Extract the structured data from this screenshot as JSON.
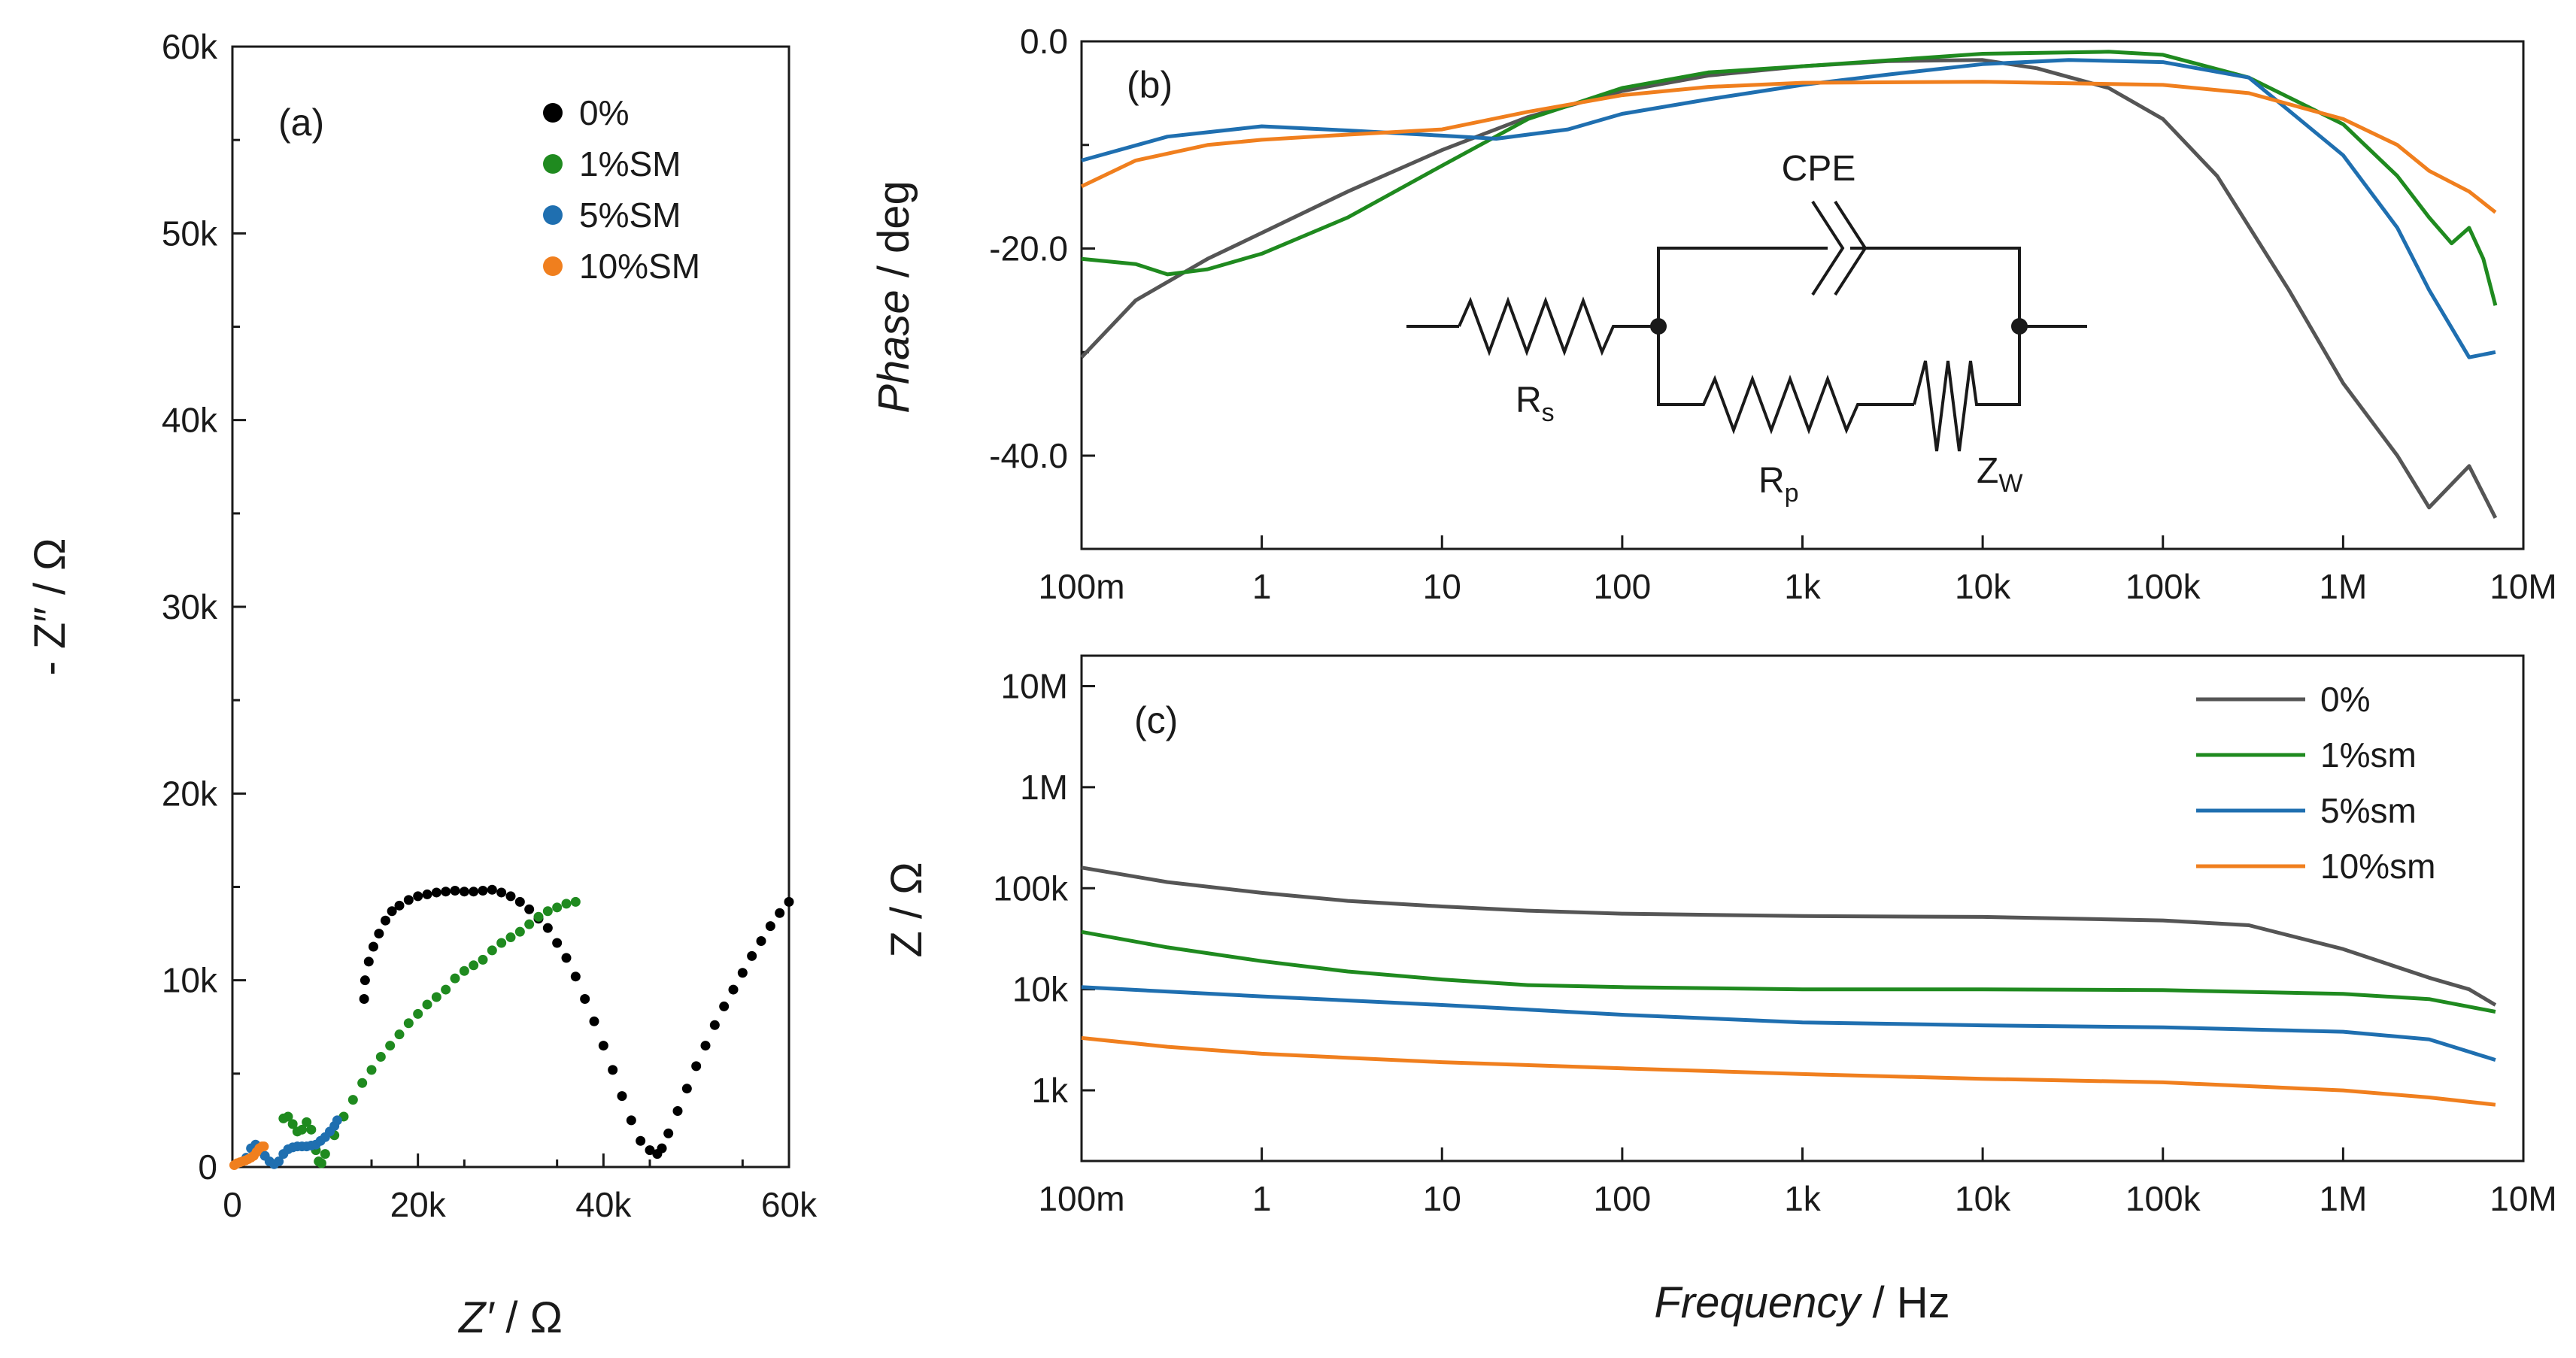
{
  "colors": {
    "s0": "#555555",
    "s0_points": "#000000",
    "s1": "#1f8a1f",
    "s5": "#1f6fb0",
    "s10": "#f07f1e"
  },
  "chart_data": [
    {
      "type": "scatter",
      "panel_label": "(a)",
      "xlabel_main": "Z′",
      "xlabel_unit": " / Ω",
      "ylabel": "- Z″ / Ω",
      "xlim": [
        0,
        60000
      ],
      "ylim": [
        0,
        60000
      ],
      "xticks": [
        "0",
        "20k",
        "40k",
        "60k"
      ],
      "yticks": [
        "0",
        "10k",
        "20k",
        "30k",
        "40k",
        "50k",
        "60k"
      ],
      "legend": [
        "0%",
        "1%SM",
        "5%SM",
        "10%SM"
      ],
      "series": [
        {
          "name": "0%",
          "x": [
            14200,
            14300,
            14700,
            15200,
            15800,
            16500,
            17200,
            18000,
            19000,
            20000,
            21000,
            22000,
            23000,
            24000,
            25000,
            26000,
            27000,
            28000,
            29000,
            30000,
            31000,
            32000,
            33000,
            34000,
            35000,
            36000,
            37000,
            38000,
            39000,
            40000,
            41000,
            42000,
            43000,
            44000,
            45000,
            45800,
            46300,
            47000,
            48000,
            49000,
            50000,
            51000,
            52000,
            53000,
            54000,
            55000,
            56000,
            57000,
            58000,
            59000,
            60000
          ],
          "y": [
            9000,
            10000,
            11000,
            11800,
            12500,
            13200,
            13700,
            14000,
            14300,
            14500,
            14600,
            14700,
            14750,
            14800,
            14750,
            14750,
            14800,
            14850,
            14700,
            14500,
            14200,
            13800,
            13300,
            12800,
            12000,
            11200,
            10200,
            9000,
            7800,
            6500,
            5200,
            3800,
            2500,
            1400,
            900,
            700,
            1000,
            1800,
            3000,
            4200,
            5400,
            6500,
            7600,
            8600,
            9500,
            10400,
            11300,
            12100,
            12900,
            13600,
            14200
          ]
        },
        {
          "name": "1%SM",
          "x": [
            5500,
            6000,
            6500,
            7000,
            7500,
            8000,
            8500,
            9000,
            9300,
            9600,
            10000,
            11000,
            12000,
            13000,
            14000,
            15000,
            16000,
            17000,
            18000,
            19000,
            20000,
            21000,
            22000,
            23000,
            24000,
            25000,
            26000,
            27000,
            28000,
            29000,
            30000,
            31000,
            32000,
            33000,
            34000,
            35000,
            36000,
            37000
          ],
          "y": [
            2600,
            2700,
            2300,
            1900,
            2000,
            2400,
            2000,
            900,
            300,
            200,
            700,
            1700,
            2700,
            3600,
            4500,
            5200,
            5900,
            6500,
            7100,
            7700,
            8200,
            8700,
            9100,
            9500,
            10100,
            10500,
            10800,
            11100,
            11600,
            12000,
            12300,
            12600,
            13000,
            13400,
            13700,
            13900,
            14100,
            14200
          ]
        },
        {
          "name": "5%SM",
          "x": [
            1500,
            2000,
            2500,
            3000,
            3500,
            4000,
            4500,
            5000,
            5500,
            6000,
            6500,
            7000,
            7500,
            8000,
            8500,
            9000,
            9500,
            10000,
            10500,
            11000,
            11300
          ],
          "y": [
            500,
            1000,
            1200,
            900,
            600,
            300,
            150,
            300,
            700,
            950,
            1050,
            1100,
            1100,
            1100,
            1150,
            1200,
            1400,
            1600,
            1900,
            2200,
            2500
          ]
        },
        {
          "name": "10%SM",
          "x": [
            200,
            500,
            800,
            1100,
            1400,
            1700,
            2000,
            2300,
            2600,
            2900,
            3200,
            3400
          ],
          "y": [
            100,
            200,
            250,
            300,
            350,
            420,
            500,
            600,
            800,
            1000,
            1100,
            1100
          ]
        }
      ]
    },
    {
      "type": "line",
      "panel_label": "(b)",
      "xlabel": "",
      "ylabel_main": "Phase",
      "ylabel_unit": " / deg",
      "xscale": "log",
      "xlim": [
        0.1,
        10000000
      ],
      "ylim": [
        -49,
        0
      ],
      "xticks": [
        "100m",
        "1",
        "10",
        "100",
        "1k",
        "10k",
        "100k",
        "1M",
        "10M"
      ],
      "yticks": [
        "0.0",
        "-20.0",
        "-40.0"
      ],
      "circuit": {
        "label_cpe": "CPE",
        "label_rs": "R",
        "label_rs_sub": "s",
        "label_rp": "R",
        "label_rp_sub": "p",
        "label_zw": "Z",
        "label_zw_sub": "W"
      },
      "series": [
        {
          "name": "0%",
          "x": [
            0.1,
            0.2,
            0.5,
            1,
            3,
            10,
            30,
            100,
            300,
            1000,
            3000,
            10000,
            20000,
            50000,
            100000,
            200000,
            500000,
            1000000,
            2000000,
            3000000,
            5000000,
            7000000
          ],
          "y": [
            -30.5,
            -25,
            -21,
            -18.5,
            -14.5,
            -10.5,
            -7.3,
            -4.8,
            -3.3,
            -2.4,
            -1.9,
            -1.8,
            -2.6,
            -4.5,
            -7.5,
            -13,
            -24,
            -33,
            -40,
            -45,
            -41,
            -46
          ]
        },
        {
          "name": "1%sm",
          "x": [
            0.1,
            0.2,
            0.3,
            0.5,
            1,
            3,
            10,
            30,
            100,
            300,
            1000,
            10000,
            50000,
            100000,
            300000,
            1000000,
            2000000,
            3000000,
            4000000,
            5000000,
            6000000,
            7000000
          ],
          "y": [
            -21,
            -21.5,
            -22.5,
            -22,
            -20.5,
            -17,
            -12,
            -7.5,
            -4.5,
            -3,
            -2.4,
            -1.2,
            -1,
            -1.3,
            -3.5,
            -8,
            -13,
            -17,
            -19.5,
            -18,
            -21,
            -25.5
          ]
        },
        {
          "name": "5%sm",
          "x": [
            0.1,
            0.3,
            1,
            3,
            10,
            20,
            50,
            100,
            300,
            1000,
            3000,
            10000,
            30000,
            100000,
            300000,
            1000000,
            2000000,
            3000000,
            5000000,
            7000000
          ],
          "y": [
            -11.5,
            -9.2,
            -8.2,
            -8.6,
            -9.1,
            -9.4,
            -8.5,
            -7,
            -5.6,
            -4.2,
            -3.2,
            -2.2,
            -1.8,
            -2,
            -3.5,
            -11,
            -18,
            -24,
            -30.5,
            -30
          ]
        },
        {
          "name": "10%sm",
          "x": [
            0.1,
            0.2,
            0.5,
            1,
            3,
            10,
            30,
            100,
            300,
            1000,
            10000,
            100000,
            300000,
            1000000,
            2000000,
            3000000,
            5000000,
            7000000
          ],
          "y": [
            -14,
            -11.5,
            -10,
            -9.5,
            -9,
            -8.5,
            -6.8,
            -5.2,
            -4.4,
            -4,
            -3.9,
            -4.2,
            -5,
            -7.5,
            -10,
            -12.5,
            -14.5,
            -16.5
          ]
        }
      ]
    },
    {
      "type": "line",
      "panel_label": "(c)",
      "xlabel_main": "Frequency",
      "xlabel_unit": " / Hz",
      "ylabel": "Z / Ω",
      "xscale": "log",
      "yscale": "log",
      "xlim": [
        0.1,
        10000000
      ],
      "ylim": [
        200,
        20000000
      ],
      "xticks": [
        "100m",
        "1",
        "10",
        "100",
        "1k",
        "10k",
        "100k",
        "1M",
        "10M"
      ],
      "yticks": [
        "1k",
        "10k",
        "100k",
        "1M",
        "10M"
      ],
      "legend": [
        "0%",
        "1%sm",
        "5%sm",
        "10%sm"
      ],
      "series": [
        {
          "name": "0%",
          "x": [
            0.1,
            0.3,
            1,
            3,
            10,
            30,
            100,
            1000,
            10000,
            100000,
            300000,
            1000000,
            3000000,
            5000000,
            7000000
          ],
          "y": [
            160000,
            115000,
            90000,
            75000,
            66000,
            60000,
            56000,
            53000,
            52000,
            48000,
            43000,
            25000,
            13000,
            10000,
            7000
          ]
        },
        {
          "name": "1%sm",
          "x": [
            0.1,
            0.3,
            1,
            3,
            10,
            30,
            100,
            1000,
            10000,
            100000,
            1000000,
            3000000,
            7000000
          ],
          "y": [
            37000,
            26000,
            19000,
            15000,
            12500,
            11000,
            10500,
            10000,
            10000,
            9800,
            9000,
            8000,
            6000
          ]
        },
        {
          "name": "5%sm",
          "x": [
            0.1,
            1,
            10,
            100,
            1000,
            10000,
            100000,
            1000000,
            3000000,
            7000000
          ],
          "y": [
            10500,
            8500,
            7000,
            5600,
            4700,
            4400,
            4200,
            3800,
            3200,
            2000
          ]
        },
        {
          "name": "10%sm",
          "x": [
            0.1,
            0.3,
            1,
            10,
            100,
            1000,
            10000,
            100000,
            1000000,
            3000000,
            7000000
          ],
          "y": [
            3300,
            2700,
            2300,
            1900,
            1650,
            1450,
            1300,
            1200,
            1000,
            850,
            720
          ]
        }
      ]
    }
  ]
}
